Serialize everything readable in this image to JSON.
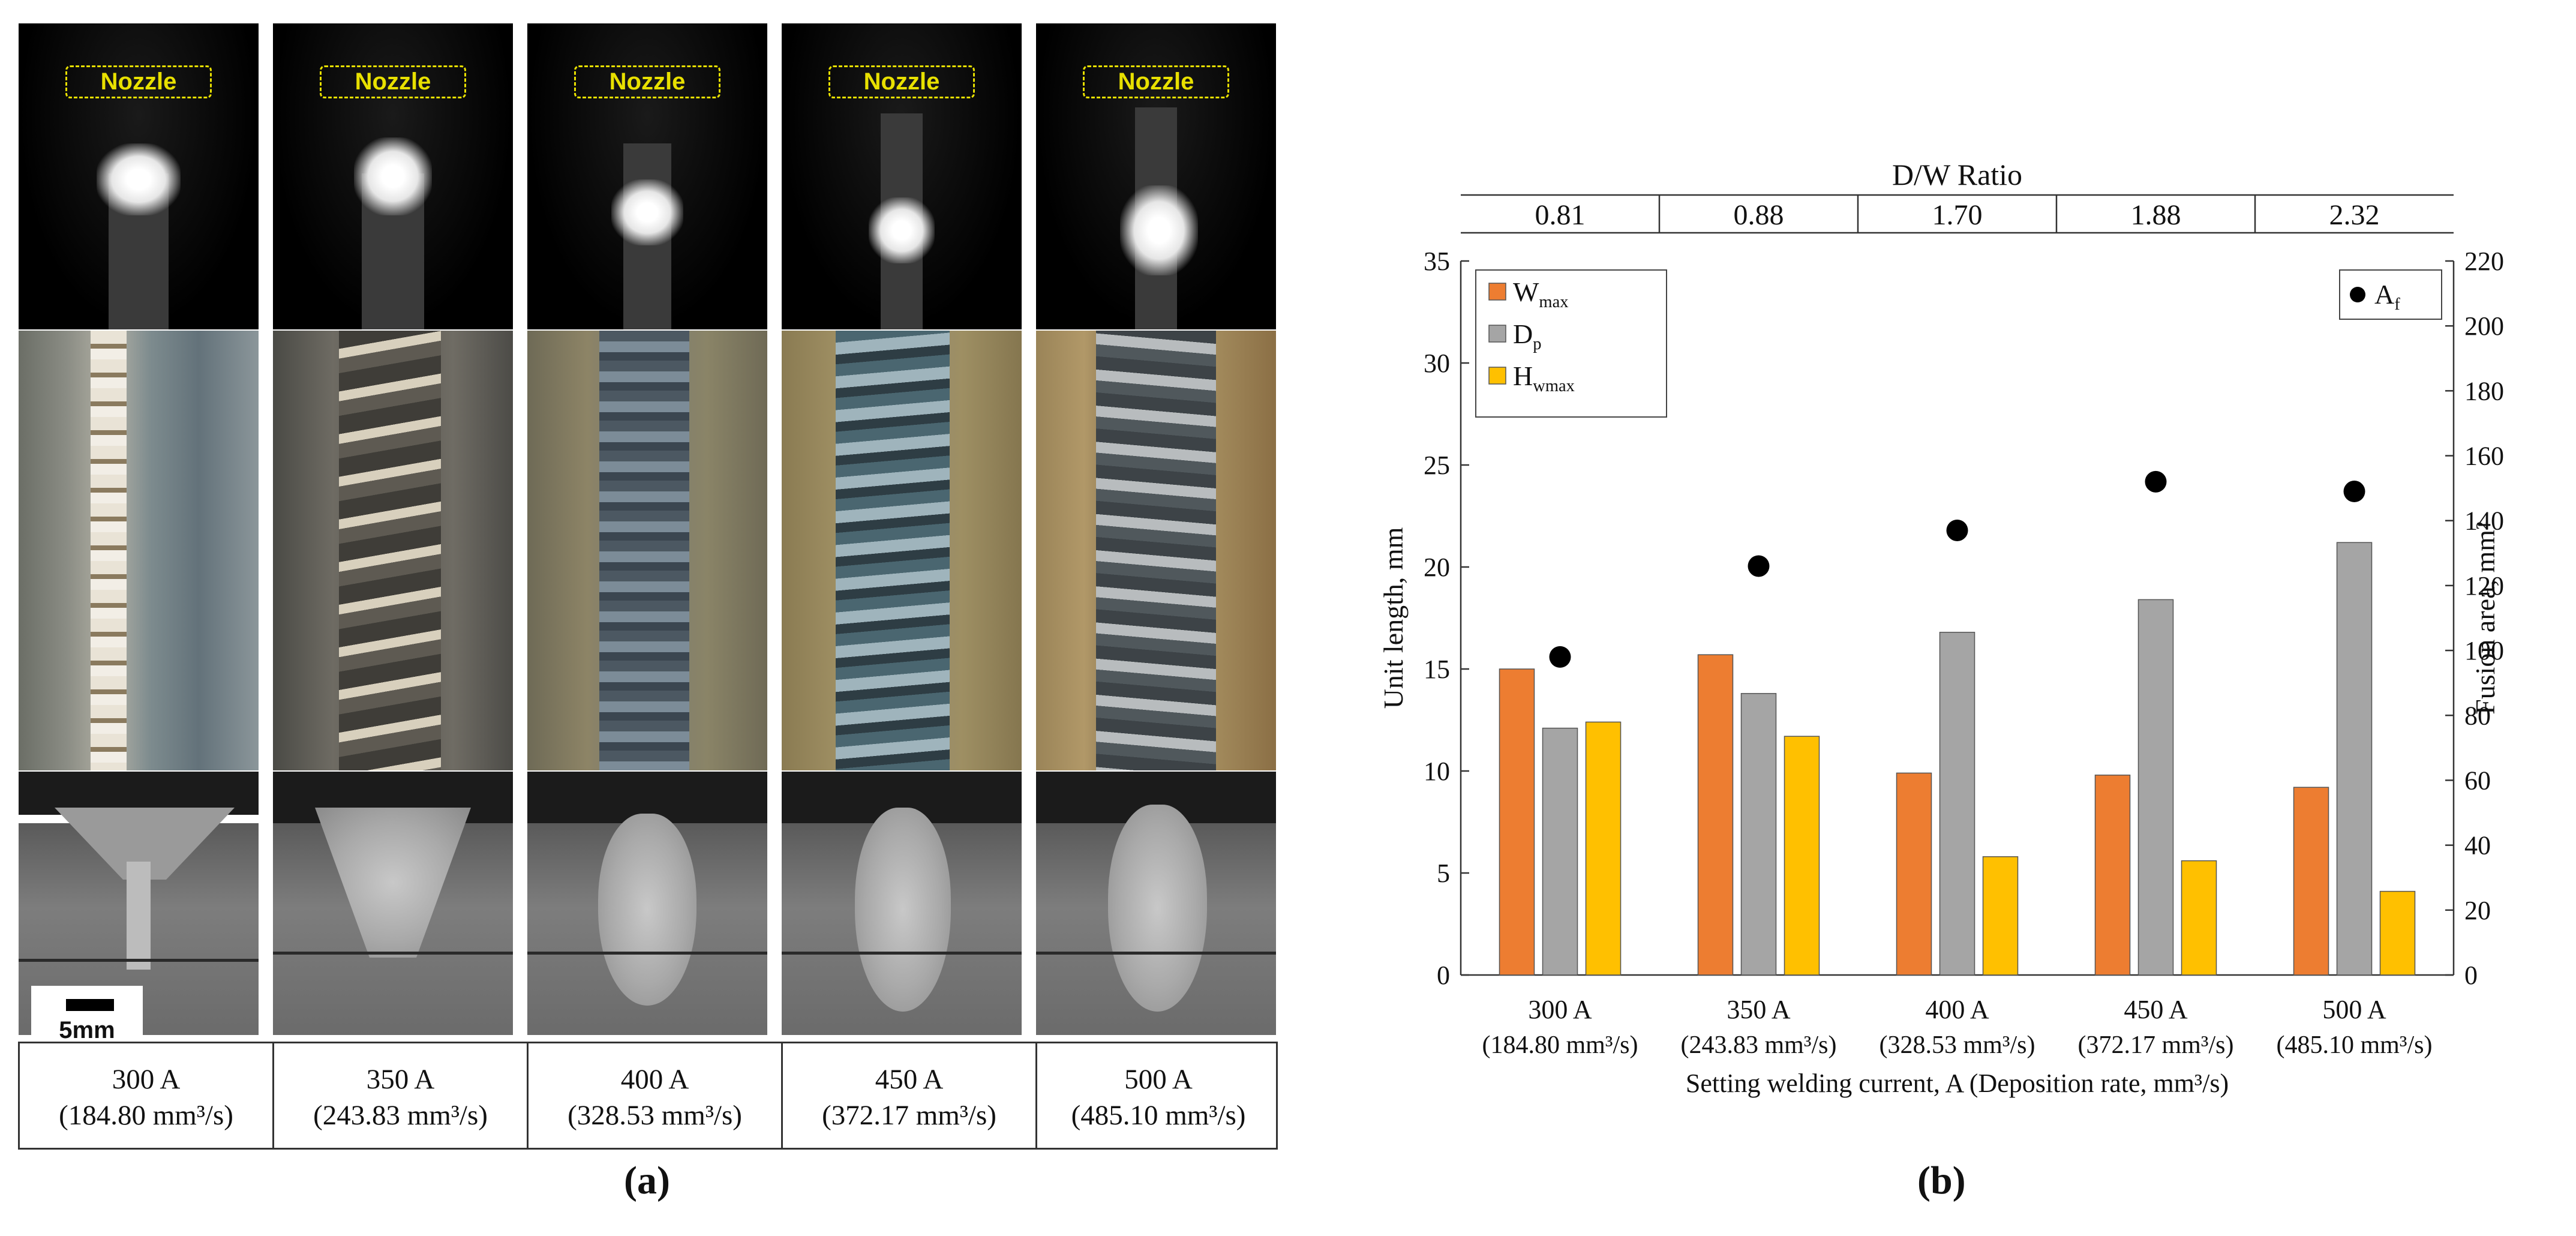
{
  "panel_a": {
    "nozzle_label": "Nozzle",
    "scale_bar_label": "5mm",
    "columns": [
      {
        "current": "300 A",
        "rate": "(184.80 mm³/s)"
      },
      {
        "current": "350 A",
        "rate": "(243.83 mm³/s)"
      },
      {
        "current": "400 A",
        "rate": "(328.53 mm³/s)"
      },
      {
        "current": "450 A",
        "rate": "(372.17 mm³/s)"
      },
      {
        "current": "500 A",
        "rate": "(485.10 mm³/s)"
      }
    ],
    "caption": "(a)"
  },
  "panel_b": {
    "caption": "(b)"
  },
  "chart_data": {
    "type": "bar",
    "title": "D/W Ratio",
    "dw_ratio": [
      "0.81",
      "0.88",
      "1.70",
      "1.88",
      "2.32"
    ],
    "categories": [
      "300 A",
      "350 A",
      "400 A",
      "450 A",
      "500 A"
    ],
    "category_sublabels": [
      "(184.80 mm³/s)",
      "(243.83 mm³/s)",
      "(328.53 mm³/s)",
      "(372.17 mm³/s)",
      "(485.10 mm³/s)"
    ],
    "xlabel": "Setting welding current, A     (Deposition rate, mm³/s)",
    "ylabel": "Unit length, mm",
    "y2label": "Fusion area, mm²",
    "ylim": [
      0,
      35
    ],
    "y2lim": [
      0,
      220
    ],
    "yticks": [
      0,
      5,
      10,
      15,
      20,
      25,
      30,
      35
    ],
    "y2ticks": [
      0,
      20,
      40,
      60,
      80,
      100,
      120,
      140,
      160,
      180,
      200,
      220
    ],
    "series": [
      {
        "name": "W",
        "sub": "max",
        "color": "#ed7d31",
        "values": [
          15.0,
          15.7,
          9.9,
          9.8,
          9.2
        ]
      },
      {
        "name": "D",
        "sub": "p",
        "color": "#a5a5a5",
        "values": [
          12.1,
          13.8,
          16.8,
          18.4,
          21.2
        ]
      },
      {
        "name": "H",
        "sub": "wmax",
        "color": "#ffc000",
        "values": [
          12.4,
          11.7,
          5.8,
          5.6,
          4.1
        ]
      }
    ],
    "scatter": {
      "name": "A",
      "sub": "f",
      "axis": "right",
      "values": [
        98,
        126,
        137,
        152,
        149
      ]
    },
    "legend_position": "top-left",
    "scatter_legend_position": "top-right"
  }
}
